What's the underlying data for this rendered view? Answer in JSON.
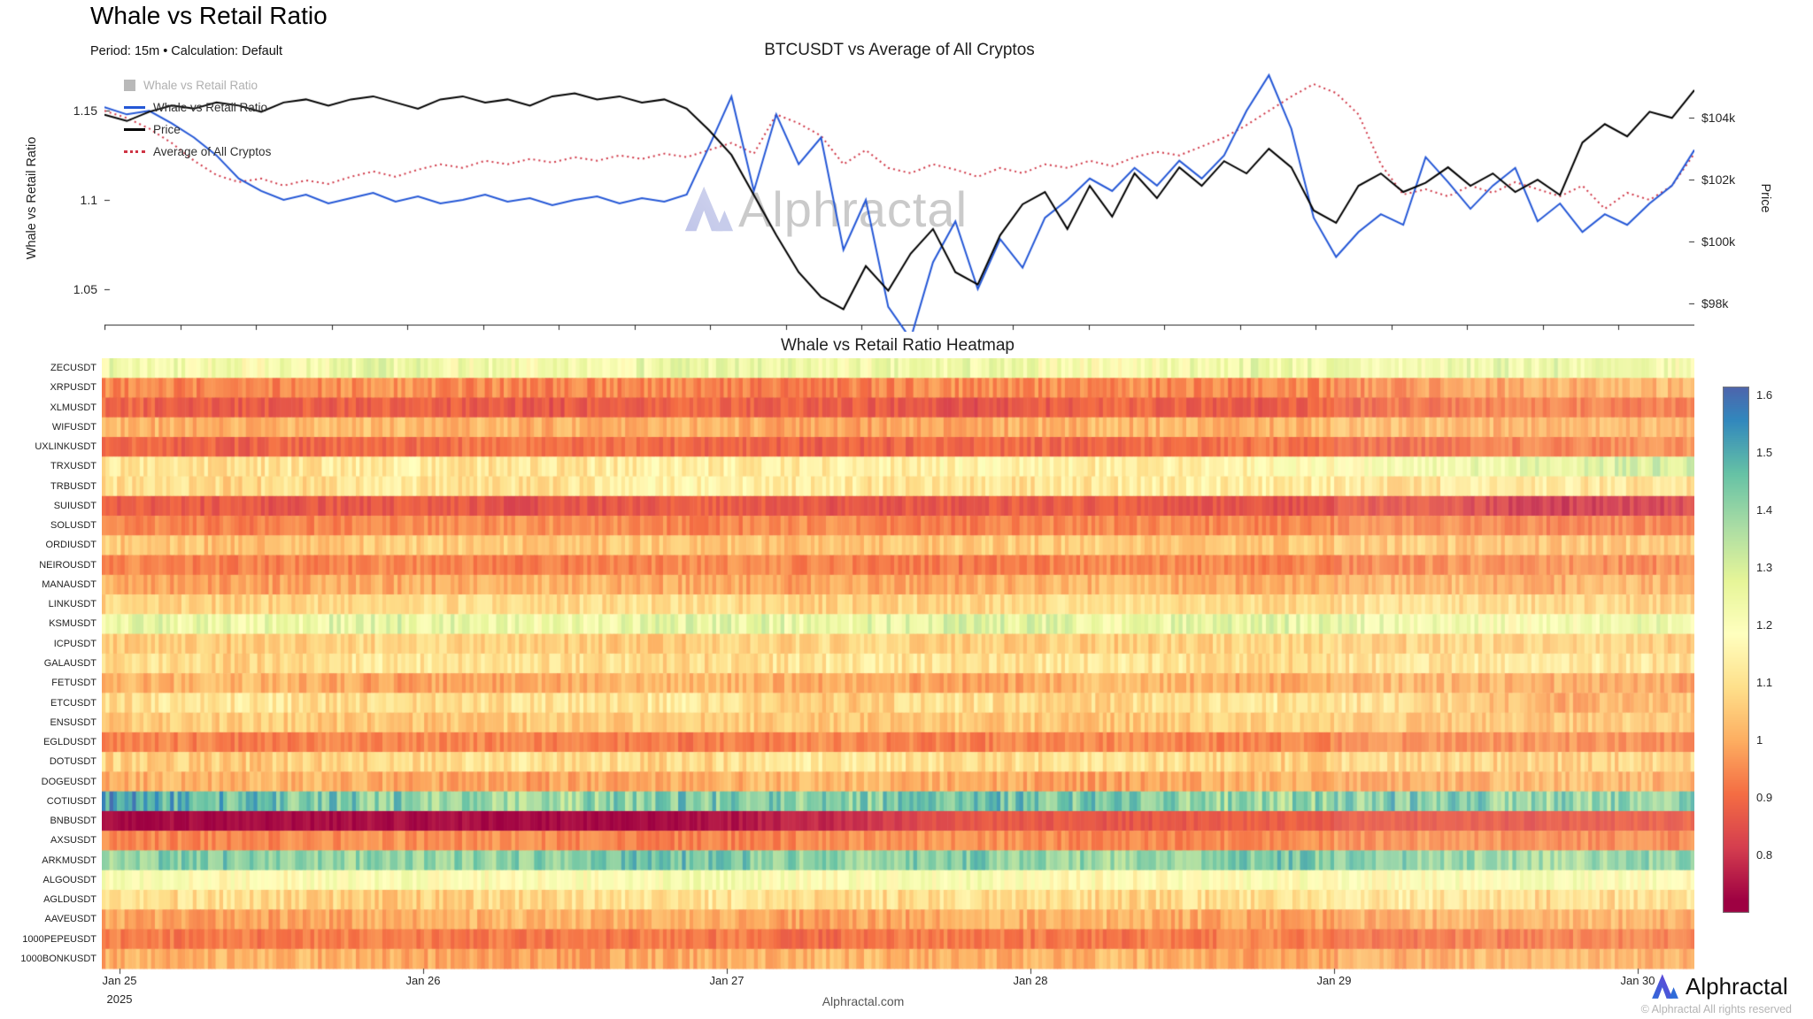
{
  "page": {
    "title": "Whale vs Retail Ratio",
    "subtitle": "Period: 15m • Calculation: Default",
    "watermark": "Alphractal",
    "footer": "Alphractal.com",
    "brand": "Alphractal",
    "copyright": "© Alphractal All rights reserved"
  },
  "colormap": {
    "min": 0.72,
    "max": 1.65,
    "colors": [
      "#9e0142",
      "#d53e4f",
      "#f46d43",
      "#fdae61",
      "#fee08b",
      "#ffffbf",
      "#e6f598",
      "#abdda4",
      "#66c2a5",
      "#3288bd",
      "#5e4fa2"
    ]
  },
  "chart_data": [
    {
      "type": "line",
      "title": "BTCUSDT vs Average of All Cryptos",
      "ylabel_left": "Whale vs Retail Ratio",
      "ylabel_right": "Price",
      "ylim_left": [
        1.03,
        1.172
      ],
      "ylim_right": [
        97.3,
        105.5
      ],
      "yticks_left": [
        1.05,
        1.1,
        1.15
      ],
      "ytick_labels_left": [
        "1.05",
        "1.1",
        "1.15"
      ],
      "yticks_right": [
        98,
        100,
        102,
        104
      ],
      "ytick_labels_right": [
        "$98k",
        "$100k",
        "$102k",
        "$104k"
      ],
      "legend": [
        {
          "label": "Whale vs Retail Ratio",
          "swatch": "square",
          "color": "#b9b9b9",
          "disabled": true
        },
        {
          "label": "Whale vs Retail Ratio",
          "swatch": "line",
          "color": "#2457d6",
          "disabled": false
        },
        {
          "label": "Price",
          "swatch": "line",
          "color": "#000000",
          "disabled": false
        },
        {
          "label": "Average of All Cryptos",
          "swatch": "dotted",
          "color": "#cf3545",
          "disabled": false
        }
      ],
      "series": [
        {
          "name": "Average of All Cryptos",
          "axis": "left",
          "style": "dotted",
          "color": "#cf3545",
          "values": [
            1.15,
            1.146,
            1.14,
            1.132,
            1.122,
            1.114,
            1.11,
            1.112,
            1.108,
            1.111,
            1.109,
            1.113,
            1.116,
            1.113,
            1.117,
            1.12,
            1.118,
            1.122,
            1.12,
            1.123,
            1.121,
            1.124,
            1.122,
            1.125,
            1.123,
            1.126,
            1.124,
            1.128,
            1.132,
            1.126,
            1.148,
            1.143,
            1.136,
            1.12,
            1.128,
            1.118,
            1.115,
            1.12,
            1.117,
            1.113,
            1.118,
            1.115,
            1.12,
            1.118,
            1.122,
            1.119,
            1.124,
            1.127,
            1.125,
            1.13,
            1.135,
            1.142,
            1.15,
            1.158,
            1.165,
            1.16,
            1.148,
            1.12,
            1.103,
            1.106,
            1.102,
            1.108,
            1.104,
            1.11,
            1.106,
            1.102,
            1.108,
            1.095,
            1.104,
            1.1,
            1.108,
            1.126
          ]
        },
        {
          "name": "Whale vs Retail Ratio",
          "axis": "left",
          "style": "solid",
          "color": "#2457d6",
          "values": [
            1.152,
            1.148,
            1.15,
            1.143,
            1.135,
            1.125,
            1.112,
            1.105,
            1.1,
            1.103,
            1.098,
            1.101,
            1.104,
            1.099,
            1.102,
            1.098,
            1.1,
            1.103,
            1.099,
            1.101,
            1.097,
            1.1,
            1.102,
            1.098,
            1.101,
            1.099,
            1.103,
            1.13,
            1.158,
            1.105,
            1.148,
            1.12,
            1.135,
            1.072,
            1.1,
            1.04,
            1.022,
            1.065,
            1.088,
            1.05,
            1.078,
            1.062,
            1.09,
            1.1,
            1.112,
            1.105,
            1.118,
            1.108,
            1.122,
            1.112,
            1.125,
            1.15,
            1.17,
            1.14,
            1.09,
            1.068,
            1.082,
            1.092,
            1.086,
            1.124,
            1.11,
            1.095,
            1.108,
            1.118,
            1.088,
            1.098,
            1.082,
            1.092,
            1.086,
            1.098,
            1.108,
            1.128
          ]
        },
        {
          "name": "Price",
          "axis": "right",
          "style": "solid",
          "color": "#000000",
          "values": [
            104.1,
            103.9,
            104.2,
            104.4,
            104.3,
            104.5,
            104.4,
            104.2,
            104.5,
            104.6,
            104.4,
            104.6,
            104.7,
            104.5,
            104.3,
            104.6,
            104.7,
            104.5,
            104.6,
            104.4,
            104.7,
            104.8,
            104.6,
            104.7,
            104.5,
            104.6,
            104.3,
            103.6,
            102.8,
            101.5,
            100.2,
            99.0,
            98.2,
            97.8,
            99.2,
            98.4,
            99.6,
            100.4,
            99.0,
            98.6,
            100.2,
            101.2,
            101.6,
            100.4,
            101.8,
            100.8,
            102.2,
            101.4,
            102.4,
            101.8,
            102.6,
            102.2,
            103.0,
            102.4,
            101.0,
            100.6,
            101.8,
            102.2,
            101.6,
            101.9,
            102.4,
            101.8,
            102.2,
            101.6,
            102.0,
            101.5,
            103.2,
            103.8,
            103.4,
            104.2,
            104.0,
            104.9
          ]
        }
      ]
    },
    {
      "type": "heatmap",
      "title": "Whale vs Retail Ratio Heatmap",
      "x_categories": [
        "Jan 25",
        "Jan 26",
        "Jan 27",
        "Jan 28",
        "Jan 29",
        "Jan 30"
      ],
      "x_sub_label": "2025",
      "colorbar_ticks": [
        0.8,
        0.9,
        1,
        1.1,
        1.2,
        1.3,
        1.4,
        1.5,
        1.6
      ],
      "colorbar_range": [
        0.7,
        1.615
      ],
      "rows": [
        {
          "label": "ZECUSDT",
          "noise": 0.07,
          "values": [
            1.24,
            1.21,
            1.25,
            1.2,
            1.26,
            1.22,
            1.24,
            1.2,
            1.25,
            1.22,
            1.26,
            1.21
          ]
        },
        {
          "label": "XRPUSDT",
          "noise": 0.05,
          "values": [
            0.95,
            0.93,
            0.96,
            0.94,
            0.95,
            0.92,
            0.96,
            0.95,
            0.94,
            0.96,
            1.0,
            1.02
          ]
        },
        {
          "label": "XLMUSDT",
          "noise": 0.04,
          "values": [
            0.9,
            0.87,
            0.89,
            0.86,
            0.9,
            0.88,
            0.85,
            0.89,
            0.87,
            0.91,
            0.94,
            0.92
          ]
        },
        {
          "label": "WIFUSDT",
          "noise": 0.05,
          "values": [
            1.02,
            1.0,
            1.03,
            1.0,
            1.02,
            0.98,
            1.0,
            1.02,
            1.0,
            1.03,
            1.0,
            1.02
          ]
        },
        {
          "label": "UXLINKUSDT",
          "noise": 0.04,
          "values": [
            0.9,
            0.88,
            0.9,
            0.92,
            0.9,
            0.88,
            0.9,
            0.9,
            0.92,
            0.9,
            0.93,
            0.95
          ]
        },
        {
          "label": "TRXUSDT",
          "noise": 0.06,
          "values": [
            1.12,
            1.1,
            1.13,
            1.11,
            1.14,
            1.12,
            1.16,
            1.13,
            1.15,
            1.22,
            1.27,
            1.31
          ]
        },
        {
          "label": "TRBUSDT",
          "noise": 0.06,
          "values": [
            1.1,
            1.08,
            1.12,
            1.1,
            1.15,
            1.12,
            1.1,
            1.12,
            1.14,
            1.1,
            1.12,
            1.1
          ]
        },
        {
          "label": "SUIUSDT",
          "noise": 0.035,
          "values": [
            0.88,
            0.86,
            0.87,
            0.85,
            0.88,
            0.86,
            0.87,
            0.88,
            0.85,
            0.87,
            0.8,
            0.83
          ]
        },
        {
          "label": "SOLUSDT",
          "noise": 0.04,
          "values": [
            0.95,
            0.93,
            0.95,
            0.96,
            0.94,
            0.95,
            0.93,
            0.95,
            0.94,
            0.96,
            0.93,
            0.95
          ]
        },
        {
          "label": "ORDIUSDT",
          "noise": 0.05,
          "values": [
            1.05,
            1.03,
            1.06,
            1.04,
            1.05,
            1.03,
            1.05,
            1.06,
            1.04,
            1.05,
            1.03,
            1.05
          ]
        },
        {
          "label": "NEIROUSDT",
          "noise": 0.04,
          "values": [
            0.95,
            0.93,
            0.95,
            0.92,
            0.95,
            0.94,
            0.92,
            0.95,
            0.93,
            0.95,
            0.96,
            0.94
          ]
        },
        {
          "label": "MANAUSDT",
          "noise": 0.05,
          "values": [
            1.0,
            0.98,
            1.0,
            1.02,
            1.0,
            0.98,
            1.0,
            1.02,
            1.0,
            1.03,
            1.0,
            1.02
          ]
        },
        {
          "label": "LINKUSDT",
          "noise": 0.05,
          "values": [
            1.08,
            1.06,
            1.1,
            1.08,
            1.1,
            1.06,
            1.08,
            1.1,
            1.08,
            1.1,
            1.08,
            1.06
          ]
        },
        {
          "label": "KSMUSDT",
          "noise": 0.07,
          "values": [
            1.27,
            1.24,
            1.28,
            1.23,
            1.27,
            1.25,
            1.29,
            1.24,
            1.27,
            1.24,
            1.21,
            1.25
          ]
        },
        {
          "label": "ICPUSDT",
          "noise": 0.05,
          "values": [
            1.06,
            1.05,
            1.08,
            1.06,
            1.05,
            1.08,
            1.06,
            1.05,
            1.08,
            1.06,
            1.08,
            1.05
          ]
        },
        {
          "label": "GALAUSDT",
          "noise": 0.06,
          "values": [
            1.1,
            1.08,
            1.12,
            1.1,
            1.08,
            1.12,
            1.1,
            1.12,
            1.08,
            1.1,
            1.12,
            1.1
          ]
        },
        {
          "label": "FETUSDT",
          "noise": 0.05,
          "values": [
            1.0,
            1.02,
            0.98,
            1.0,
            1.02,
            1.0,
            0.98,
            1.02,
            1.0,
            1.02,
            1.0,
            0.98
          ]
        },
        {
          "label": "ETCUSDT",
          "noise": 0.06,
          "values": [
            1.1,
            1.12,
            1.08,
            1.1,
            1.12,
            1.05,
            1.1,
            1.08,
            1.12,
            1.1,
            1.0,
            1.05
          ]
        },
        {
          "label": "ENSUSDT",
          "noise": 0.05,
          "values": [
            1.05,
            1.06,
            1.04,
            1.05,
            1.06,
            1.04,
            1.05,
            1.04,
            1.06,
            1.05,
            1.04,
            1.05
          ]
        },
        {
          "label": "EGLDUSDT",
          "noise": 0.04,
          "values": [
            0.95,
            0.93,
            0.95,
            0.94,
            0.92,
            0.95,
            0.93,
            0.95,
            0.94,
            0.95,
            0.96,
            0.94
          ]
        },
        {
          "label": "DOTUSDT",
          "noise": 0.06,
          "values": [
            1.07,
            1.05,
            1.08,
            1.1,
            1.07,
            1.12,
            1.08,
            1.1,
            1.07,
            1.08,
            1.05,
            1.07
          ]
        },
        {
          "label": "DOGEUSDT",
          "noise": 0.05,
          "values": [
            1.0,
            1.02,
            1.0,
            0.98,
            1.0,
            1.02,
            1.0,
            0.98,
            1.02,
            1.0,
            1.02,
            1.0
          ]
        },
        {
          "label": "COTIUSDT",
          "noise": 0.09,
          "values": [
            1.52,
            1.45,
            1.42,
            1.38,
            1.44,
            1.4,
            1.45,
            1.42,
            1.38,
            1.44,
            1.4,
            1.42
          ]
        },
        {
          "label": "BNBUSDT",
          "noise": 0.025,
          "values": [
            0.74,
            0.73,
            0.74,
            0.73,
            0.74,
            0.78,
            0.87,
            0.86,
            0.88,
            0.87,
            0.86,
            0.88
          ]
        },
        {
          "label": "AXSUSDT",
          "noise": 0.04,
          "values": [
            0.95,
            0.94,
            0.96,
            0.95,
            0.93,
            0.95,
            0.96,
            0.94,
            0.95,
            0.96,
            0.95,
            0.94
          ]
        },
        {
          "label": "ARKMUSDT",
          "noise": 0.07,
          "values": [
            1.4,
            1.44,
            1.38,
            1.42,
            1.46,
            1.4,
            1.43,
            1.39,
            1.44,
            1.41,
            1.38,
            1.42
          ]
        },
        {
          "label": "ALGOUSDT",
          "noise": 0.06,
          "values": [
            1.2,
            1.17,
            1.21,
            1.18,
            1.22,
            1.19,
            1.21,
            1.17,
            1.2,
            1.18,
            1.21,
            1.19
          ]
        },
        {
          "label": "AGLDUSDT",
          "noise": 0.06,
          "values": [
            1.08,
            1.1,
            1.06,
            1.08,
            1.12,
            1.08,
            1.1,
            1.08,
            1.1,
            1.12,
            1.08,
            1.1
          ]
        },
        {
          "label": "AAVEUSDT",
          "noise": 0.05,
          "values": [
            1.0,
            0.98,
            1.0,
            1.02,
            1.0,
            0.98,
            1.0,
            1.02,
            0.98,
            1.0,
            1.02,
            1.0
          ]
        },
        {
          "label": "1000PEPEUSDT",
          "noise": 0.04,
          "values": [
            0.93,
            0.92,
            0.94,
            0.92,
            0.93,
            0.9,
            0.93,
            0.92,
            0.94,
            0.92,
            0.93,
            0.94
          ]
        },
        {
          "label": "1000BONKUSDT",
          "noise": 0.05,
          "values": [
            1.0,
            1.02,
            1.0,
            0.98,
            1.0,
            1.02,
            1.0,
            1.02,
            0.98,
            1.0,
            1.02,
            1.0
          ]
        }
      ]
    }
  ]
}
